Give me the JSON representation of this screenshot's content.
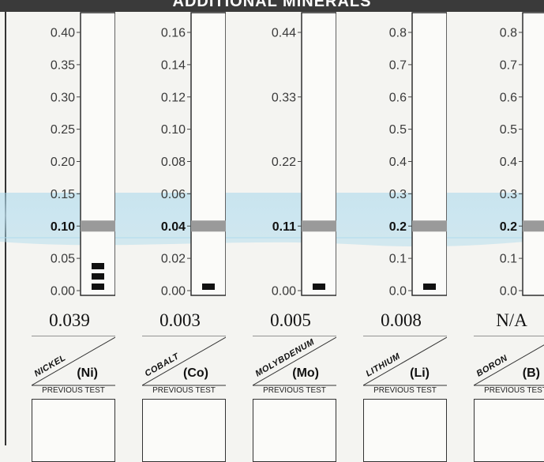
{
  "header": {
    "title": "ADDITIONAL MINERALS"
  },
  "previous_test_label": "PREVIOUS TEST",
  "chart_data": [
    {
      "type": "bar",
      "name": "NICKEL",
      "symbol": "(Ni)",
      "result": "0.039",
      "ticks": [
        "0.40",
        "0.35",
        "0.30",
        "0.25",
        "0.20",
        "0.15",
        "0.10",
        "0.05",
        "0.00"
      ],
      "ylim": [
        0,
        0.4
      ],
      "reference": 0.1,
      "reference_label": "0.10",
      "value": 0.039,
      "segments": 3
    },
    {
      "type": "bar",
      "name": "COBALT",
      "symbol": "(Co)",
      "result": "0.003",
      "ticks": [
        "0.16",
        "0.14",
        "0.12",
        "0.10",
        "0.08",
        "0.06",
        "0.04",
        "0.02",
        "0.00"
      ],
      "ylim": [
        0,
        0.16
      ],
      "reference": 0.04,
      "reference_label": "0.04",
      "value": 0.003,
      "segments": 1
    },
    {
      "type": "bar",
      "name": "MOLYBDENUM",
      "symbol": "(Mo)",
      "result": "0.005",
      "ticks": [
        "0.44",
        "0.33",
        "0.22",
        "0.11",
        "0.00"
      ],
      "ylim": [
        0,
        0.44
      ],
      "reference": 0.11,
      "reference_label": "0.11",
      "value": 0.005,
      "segments": 1
    },
    {
      "type": "bar",
      "name": "LITHIUM",
      "symbol": "(Li)",
      "result": "0.008",
      "ticks": [
        "0.8",
        "0.7",
        "0.6",
        "0.5",
        "0.4",
        "0.3",
        "0.2",
        "0.1",
        "0.0"
      ],
      "ylim": [
        0,
        0.8
      ],
      "reference": 0.2,
      "reference_label": "0.2",
      "value": 0.008,
      "segments": 1
    },
    {
      "type": "bar",
      "name": "BORON",
      "symbol": "(B)",
      "result": "N/A",
      "ticks": [
        "0.8",
        "0.7",
        "0.6",
        "0.5",
        "0.4",
        "0.3",
        "0.2",
        "0.1",
        "0.0"
      ],
      "ylim": [
        0,
        0.8
      ],
      "reference": 0.2,
      "reference_label": "0.2",
      "value": null,
      "segments": 0
    }
  ]
}
